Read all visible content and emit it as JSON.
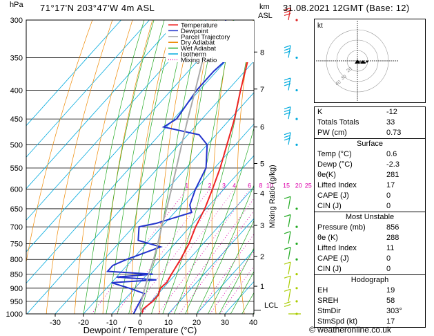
{
  "header": {
    "location": "71°17'N  203°47'W  4m  ASL",
    "datetime": "31.08.2021  12GMT  (Base: 12)"
  },
  "axes": {
    "hpa_label": "hPa",
    "km_label": "km",
    "asl_label": "ASL",
    "x_title": "Dewpoint / Temperature (°C)",
    "mix_title": "Mixing Ratio (g/kg)",
    "lcl_label": "LCL",
    "pressure_ticks": [
      300,
      350,
      400,
      450,
      500,
      550,
      600,
      650,
      700,
      750,
      800,
      850,
      900,
      950,
      1000
    ],
    "temp_ticks": [
      -30,
      -20,
      -10,
      0,
      10,
      20,
      30,
      40
    ],
    "km_ticks": [
      {
        "p": 342,
        "label": "8"
      },
      {
        "p": 398,
        "label": "7"
      },
      {
        "p": 465,
        "label": "6"
      },
      {
        "p": 540,
        "label": "5"
      },
      {
        "p": 610,
        "label": "4"
      },
      {
        "p": 696,
        "label": "3"
      },
      {
        "p": 790,
        "label": "2"
      },
      {
        "p": 893,
        "label": "1"
      }
    ],
    "mixing_ratio_labels": [
      "1",
      "2",
      "3",
      "4",
      "6",
      "8",
      "10",
      "15",
      "20",
      "25"
    ]
  },
  "legend": [
    {
      "label": "Temperature",
      "color": "#ee2222"
    },
    {
      "label": "Dewpoint",
      "color": "#2233cc"
    },
    {
      "label": "Parcel Trajectory",
      "color": "#aaaaaa"
    },
    {
      "label": "Dry Adiabat",
      "color": "#ee8800"
    },
    {
      "label": "Wet Adiabat",
      "color": "#22aa22"
    },
    {
      "label": "Isotherm",
      "color": "#00aadd"
    },
    {
      "label": "Mixing Ratio",
      "color": "#dd00aa"
    }
  ],
  "hodograph": {
    "kt_label": "kt",
    "ring_labels": [
      "20",
      "30",
      "40"
    ]
  },
  "indices": {
    "rows": [
      {
        "label": "K",
        "value": "-12"
      },
      {
        "label": "Totals Totals",
        "value": "33"
      },
      {
        "label": "PW (cm)",
        "value": "0.73"
      }
    ]
  },
  "surface": {
    "title": "Surface",
    "rows": [
      {
        "label": "Temp (°C)",
        "value": "0.6"
      },
      {
        "label": "Dewp (°C)",
        "value": "-2.3"
      },
      {
        "label": "θe(K)",
        "value": "281"
      },
      {
        "label": "Lifted Index",
        "value": "17"
      },
      {
        "label": "CAPE (J)",
        "value": "0"
      },
      {
        "label": "CIN (J)",
        "value": "0"
      }
    ]
  },
  "most_unstable": {
    "title": "Most Unstable",
    "rows": [
      {
        "label": "Pressure (mb)",
        "value": "856"
      },
      {
        "label": "θe (K)",
        "value": "288"
      },
      {
        "label": "Lifted Index",
        "value": "11"
      },
      {
        "label": "CAPE (J)",
        "value": "0"
      },
      {
        "label": "CIN (J)",
        "value": "0"
      }
    ]
  },
  "hodograph_table": {
    "title": "Hodograph",
    "rows": [
      {
        "label": "EH",
        "value": "19"
      },
      {
        "label": "SREH",
        "value": "58"
      },
      {
        "label": "StmDir",
        "value": "303°"
      },
      {
        "label": "StmSpd (kt)",
        "value": "17"
      }
    ]
  },
  "copyright": "© weatheronline.co.uk",
  "chart_data": {
    "type": "line",
    "x_axis": "temperature °C (skewed)",
    "y_axis": "pressure hPa (log)",
    "xlim": [
      -35,
      40
    ],
    "ylim": [
      1000,
      300
    ],
    "series": [
      {
        "name": "Temperature",
        "color": "#ee2222",
        "points": [
          [
            1000,
            0.6
          ],
          [
            980,
            -0.5
          ],
          [
            950,
            0.5
          ],
          [
            925,
            0.5
          ],
          [
            900,
            -1
          ],
          [
            880,
            -0.5
          ],
          [
            850,
            -1.5
          ],
          [
            800,
            -3
          ],
          [
            750,
            -5
          ],
          [
            700,
            -8
          ],
          [
            650,
            -10.5
          ],
          [
            600,
            -14
          ],
          [
            550,
            -18
          ],
          [
            500,
            -23
          ],
          [
            450,
            -28.5
          ],
          [
            400,
            -35.5
          ],
          [
            350,
            -43
          ],
          [
            320,
            -47
          ],
          [
            300,
            -47.5
          ]
        ]
      },
      {
        "name": "Dewpoint",
        "color": "#2233cc",
        "points": [
          [
            1000,
            -2.3
          ],
          [
            980,
            -3
          ],
          [
            950,
            -4
          ],
          [
            920,
            -5
          ],
          [
            900,
            -12
          ],
          [
            880,
            -20
          ],
          [
            870,
            -5
          ],
          [
            860,
            -20
          ],
          [
            850,
            -8
          ],
          [
            840,
            -25
          ],
          [
            820,
            -25
          ],
          [
            800,
            -22
          ],
          [
            760,
            -14
          ],
          [
            740,
            -24
          ],
          [
            700,
            -28
          ],
          [
            690,
            -23
          ],
          [
            660,
            -14
          ],
          [
            640,
            -17
          ],
          [
            600,
            -20
          ],
          [
            550,
            -23
          ],
          [
            500,
            -30
          ],
          [
            480,
            -36
          ],
          [
            465,
            -51
          ],
          [
            450,
            -49
          ],
          [
            400,
            -51
          ],
          [
            370,
            -51
          ],
          [
            350,
            -50
          ],
          [
            330,
            -57
          ],
          [
            300,
            -63
          ]
        ]
      },
      {
        "name": "Parcel Trajectory",
        "color": "#aaaaaa",
        "points": [
          [
            1000,
            0.6
          ],
          [
            970,
            -2.5
          ],
          [
            950,
            -3.5
          ],
          [
            900,
            -6.5
          ],
          [
            850,
            -9.5
          ],
          [
            800,
            -12.5
          ],
          [
            750,
            -16
          ],
          [
            700,
            -20
          ],
          [
            650,
            -24
          ],
          [
            600,
            -28.5
          ],
          [
            550,
            -33.5
          ],
          [
            500,
            -39
          ],
          [
            450,
            -45
          ],
          [
            400,
            -51.5
          ],
          [
            350,
            -59
          ],
          [
            300,
            -67
          ]
        ]
      }
    ],
    "wind_barbs": [
      {
        "p": 1000,
        "dir": 270,
        "kt": 15
      },
      {
        "p": 950,
        "dir": 300,
        "kt": 10
      },
      {
        "p": 900,
        "dir": 310,
        "kt": 10
      },
      {
        "p": 850,
        "dir": 320,
        "kt": 10
      },
      {
        "p": 800,
        "dir": 330,
        "kt": 10
      },
      {
        "p": 750,
        "dir": 330,
        "kt": 10
      },
      {
        "p": 700,
        "dir": 330,
        "kt": 10
      },
      {
        "p": 650,
        "dir": 330,
        "kt": 10
      },
      {
        "p": 500,
        "dir": 340,
        "kt": 25
      },
      {
        "p": 450,
        "dir": 340,
        "kt": 25
      },
      {
        "p": 400,
        "dir": 340,
        "kt": 25
      },
      {
        "p": 350,
        "dir": 340,
        "kt": 25
      },
      {
        "p": 300,
        "dir": 20,
        "kt": 30
      }
    ]
  }
}
